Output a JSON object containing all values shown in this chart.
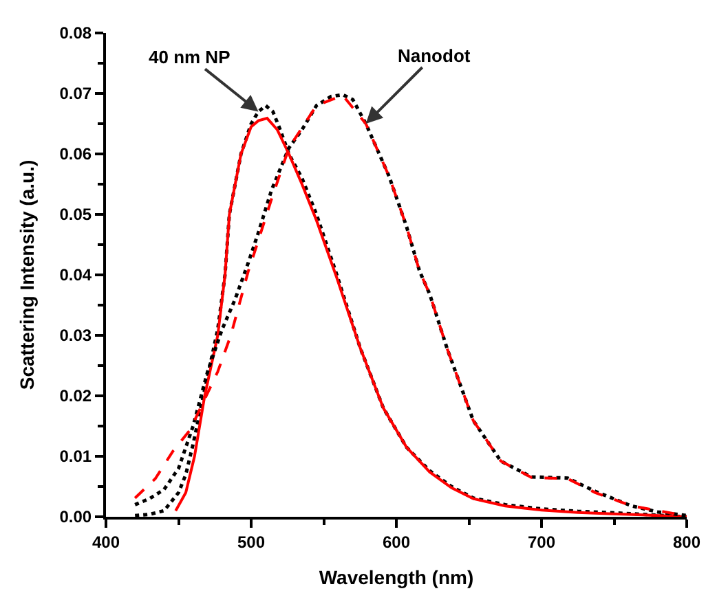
{
  "chart_data": {
    "type": "line",
    "xlabel": "Wavelength (nm)",
    "ylabel": "Scattering Intensity (a.u.)",
    "xlim": [
      400,
      800
    ],
    "xticks": [
      400,
      500,
      600,
      700,
      800
    ],
    "ylim": [
      0,
      0.08
    ],
    "yticks": [
      {
        "value": 0,
        "label": "0.00"
      },
      {
        "value": 0.01,
        "label": "0.01"
      },
      {
        "value": 0.02,
        "label": "0.02"
      },
      {
        "value": 0.03,
        "label": "0.03"
      },
      {
        "value": 0.04,
        "label": "0.04"
      },
      {
        "value": 0.05,
        "label": "0.05"
      },
      {
        "value": 0.06,
        "label": "0.06"
      },
      {
        "value": 0.07,
        "label": "0.07"
      },
      {
        "value": 0.08,
        "label": "0.08"
      }
    ],
    "marker": "none",
    "series": [
      {
        "color": "#000000",
        "line_style": "dotted",
        "x": [
          420,
          430,
          440,
          450,
          455,
          460,
          468,
          477,
          482,
          485,
          493,
          500,
          505,
          510,
          515,
          520,
          526,
          535,
          545,
          559,
          575,
          591,
          607,
          623,
          638,
          653,
          675,
          700,
          725,
          746,
          770,
          800
        ],
        "values": [
          0.0002,
          0.0004,
          0.001,
          0.004,
          0.007,
          0.012,
          0.021,
          0.031,
          0.04,
          0.05,
          0.06,
          0.065,
          0.067,
          0.068,
          0.067,
          0.064,
          0.06,
          0.056,
          0.05,
          0.04,
          0.028,
          0.018,
          0.0115,
          0.0076,
          0.005,
          0.0031,
          0.002,
          0.0013,
          0.0009,
          0.0007,
          0.0004,
          0
        ]
      },
      {
        "color": "#ff0000",
        "line_style": "solid",
        "x": [
          448,
          455,
          461,
          468,
          477,
          482,
          485,
          493,
          500,
          505,
          511,
          518,
          526,
          535,
          545,
          559,
          575,
          591,
          607,
          623,
          638,
          653,
          675,
          700,
          725,
          746,
          770,
          800
        ],
        "values": [
          0.001,
          0.004,
          0.01,
          0.02,
          0.03,
          0.04,
          0.05,
          0.06,
          0.0645,
          0.0655,
          0.0659,
          0.064,
          0.06,
          0.055,
          0.049,
          0.0395,
          0.028,
          0.018,
          0.0115,
          0.0074,
          0.0048,
          0.003,
          0.0018,
          0.0011,
          0.0007,
          0.0005,
          0.0003,
          0
        ]
      },
      {
        "color": "#000000",
        "line_style": "dotted",
        "x": [
          420,
          430,
          440,
          450,
          460,
          470,
          480,
          489,
          498,
          505,
          514,
          526,
          535,
          545,
          555,
          563,
          570,
          579,
          595,
          607,
          616,
          623,
          635,
          653,
          672,
          693,
          718,
          737,
          762,
          780,
          800
        ],
        "values": [
          0.002,
          0.003,
          0.0045,
          0.008,
          0.015,
          0.024,
          0.031,
          0.036,
          0.042,
          0.047,
          0.054,
          0.061,
          0.064,
          0.068,
          0.0695,
          0.0698,
          0.069,
          0.065,
          0.0563,
          0.048,
          0.0406,
          0.0368,
          0.0278,
          0.0159,
          0.0092,
          0.0066,
          0.0064,
          0.0042,
          0.0018,
          0.0008,
          0.0002
        ]
      },
      {
        "color": "#ff0000",
        "line_style": "dashed",
        "x": [
          420,
          434,
          446,
          458,
          477,
          486,
          498,
          502,
          514,
          526,
          545,
          563,
          579,
          595,
          607,
          616,
          623,
          635,
          653,
          672,
          693,
          718,
          737,
          762,
          799
        ],
        "values": [
          0.0031,
          0.0063,
          0.0108,
          0.0144,
          0.024,
          0.03,
          0.0406,
          0.0435,
          0.0525,
          0.061,
          0.068,
          0.0697,
          0.065,
          0.0563,
          0.048,
          0.0406,
          0.0368,
          0.0278,
          0.0159,
          0.0092,
          0.0065,
          0.0063,
          0.004,
          0.0018,
          0.0002
        ]
      }
    ],
    "annotations": [
      {
        "text": "40 nm NP",
        "x": 505,
        "y": 0.067
      },
      {
        "text": "Nanodot",
        "x": 579,
        "y": 0.065
      }
    ]
  }
}
